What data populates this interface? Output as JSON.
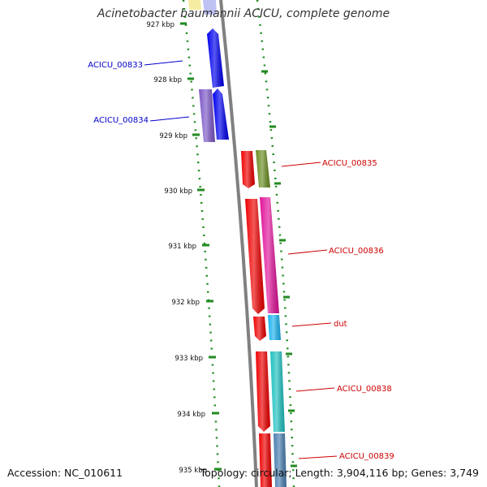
{
  "title": "Acinetobacter baumannii ACICU, complete genome",
  "footer": {
    "accession": "Accession: NC_010611",
    "topology": "Topology: circular; Length: 3,904,116 bp; Genes: 3,749"
  },
  "colors": {
    "backbone": "#808080",
    "tick": "#228B22",
    "label_left": "#0000CC",
    "label_right": "#CC0000"
  },
  "ticks": [
    "927 kbp",
    "928 kbp",
    "929 kbp",
    "930 kbp",
    "931 kbp",
    "932 kbp",
    "933 kbp",
    "934 kbp",
    "935 kbp"
  ],
  "genes": [
    {
      "label": "ACICU_00833",
      "side": "left"
    },
    {
      "label": "ACICU_00834",
      "side": "left"
    },
    {
      "label": "ACICU_00835",
      "side": "right"
    },
    {
      "label": "ACICU_00836",
      "side": "right"
    },
    {
      "label": "dut",
      "side": "right"
    },
    {
      "label": "ACICU_00838",
      "side": "right"
    },
    {
      "label": "ACICU_00839",
      "side": "right"
    }
  ]
}
